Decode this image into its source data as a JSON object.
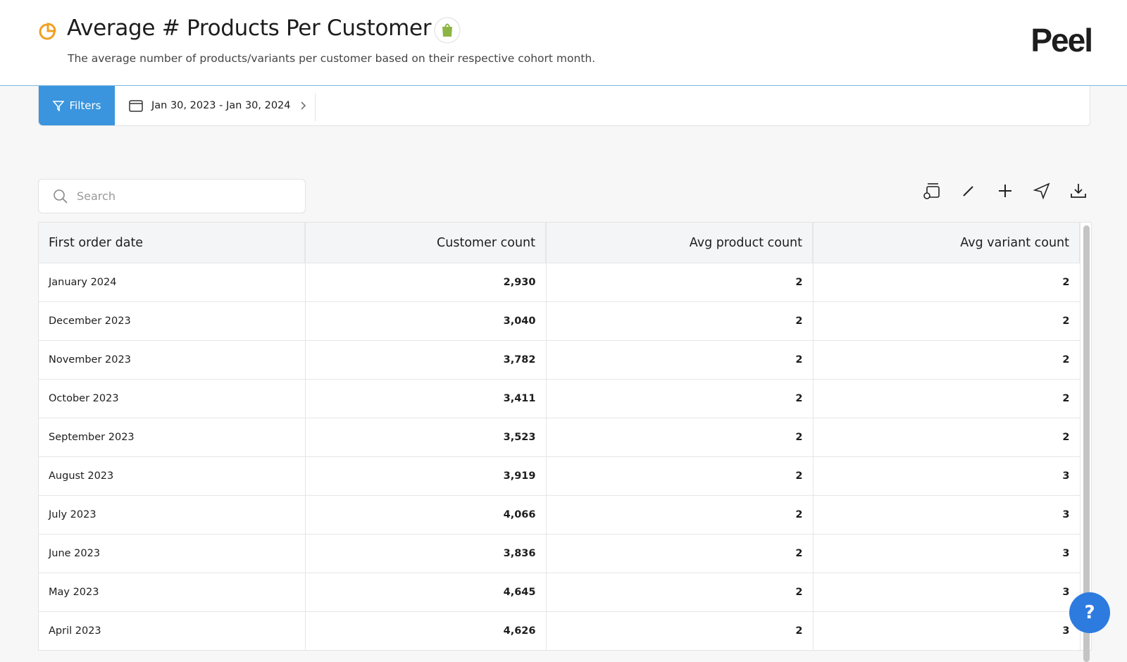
{
  "header": {
    "title": "Average # Products Per Customer",
    "subtitle": "The average number of products/variants per customer based on their respective cohort month.",
    "logo": "Peel"
  },
  "toolbar": {
    "filters": "Filters",
    "date_range": "Jan 30, 2023 - Jan 30, 2024"
  },
  "search": {
    "placeholder": "Search"
  },
  "table": {
    "columns": [
      "First order date",
      "Customer count",
      "Avg product count",
      "Avg variant count"
    ],
    "rows": [
      [
        "January 2024",
        "2,930",
        "2",
        "2"
      ],
      [
        "December 2023",
        "3,040",
        "2",
        "2"
      ],
      [
        "November 2023",
        "3,782",
        "2",
        "2"
      ],
      [
        "October 2023",
        "3,411",
        "2",
        "2"
      ],
      [
        "September 2023",
        "3,523",
        "2",
        "2"
      ],
      [
        "August 2023",
        "3,919",
        "2",
        "3"
      ],
      [
        "July 2023",
        "4,066",
        "2",
        "3"
      ],
      [
        "June 2023",
        "3,836",
        "2",
        "3"
      ],
      [
        "May 2023",
        "4,645",
        "2",
        "3"
      ],
      [
        "April 2023",
        "4,626",
        "2",
        "3"
      ]
    ]
  },
  "help": {
    "label": "?"
  }
}
